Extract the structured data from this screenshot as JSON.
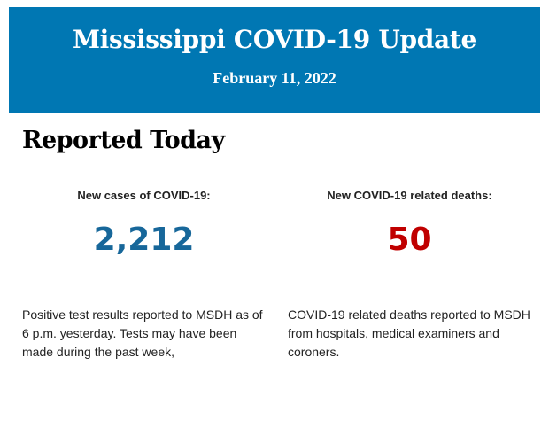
{
  "header": {
    "title": "Mississippi COVID-19 Update",
    "date": "February 11, 2022",
    "background": "#0077b3"
  },
  "section_title": "Reported Today",
  "stats": [
    {
      "label": "New cases of COVID-19:",
      "value": "2,212",
      "color": "#17679a",
      "description": "Positive test results reported to MSDH as of 6 p.m. yesterday. Tests may have been made during the past week,"
    },
    {
      "label": "New COVID-19 related deaths:",
      "value": "50",
      "color": "#c00000",
      "description": "COVID-19 related deaths reported to MSDH from hospitals, medical examiners and coroners."
    }
  ]
}
